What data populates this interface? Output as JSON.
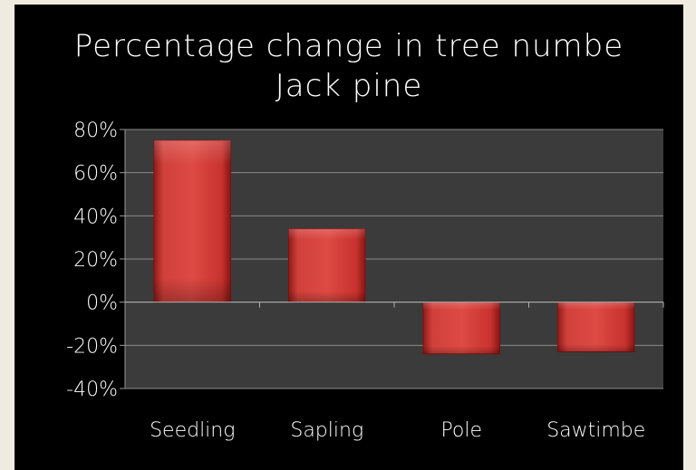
{
  "chart_data": {
    "type": "bar",
    "title": "Percentage change in tree numbe",
    "subtitle": "Jack pine",
    "categories": [
      "Seedling",
      "Sapling",
      "Pole",
      "Sawtimbe"
    ],
    "values": [
      75,
      34,
      -24,
      -23
    ],
    "ylim": [
      -40,
      80
    ],
    "yticks": [
      80,
      60,
      40,
      20,
      0,
      -20,
      -40
    ],
    "ytick_labels": [
      "80%",
      "60%",
      "40%",
      "20%",
      "0%",
      "-20%",
      "-40%"
    ],
    "grid": true,
    "bar_color": "#c9302c",
    "plot_background": "#3b3b3b",
    "background": "#000000"
  }
}
